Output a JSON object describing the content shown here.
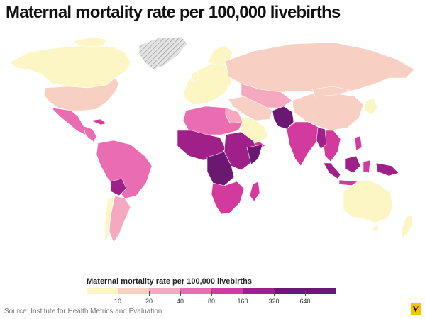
{
  "title": "Maternal mortality rate per 100,000 livebirths",
  "legend": {
    "title": "Maternal mortality rate per 100,000 livebirths",
    "ticks": [
      "10",
      "20",
      "40",
      "80",
      "160",
      "320",
      "640"
    ],
    "colors": [
      "#fbf6c4",
      "#f8cfc3",
      "#f5a9c0",
      "#e96db0",
      "#d23a9e",
      "#a0208a",
      "#6a1872"
    ]
  },
  "no_data_color": "#dddddd",
  "source": "Source: Institute for Health Metrics and Evaluation",
  "logo": "V"
}
